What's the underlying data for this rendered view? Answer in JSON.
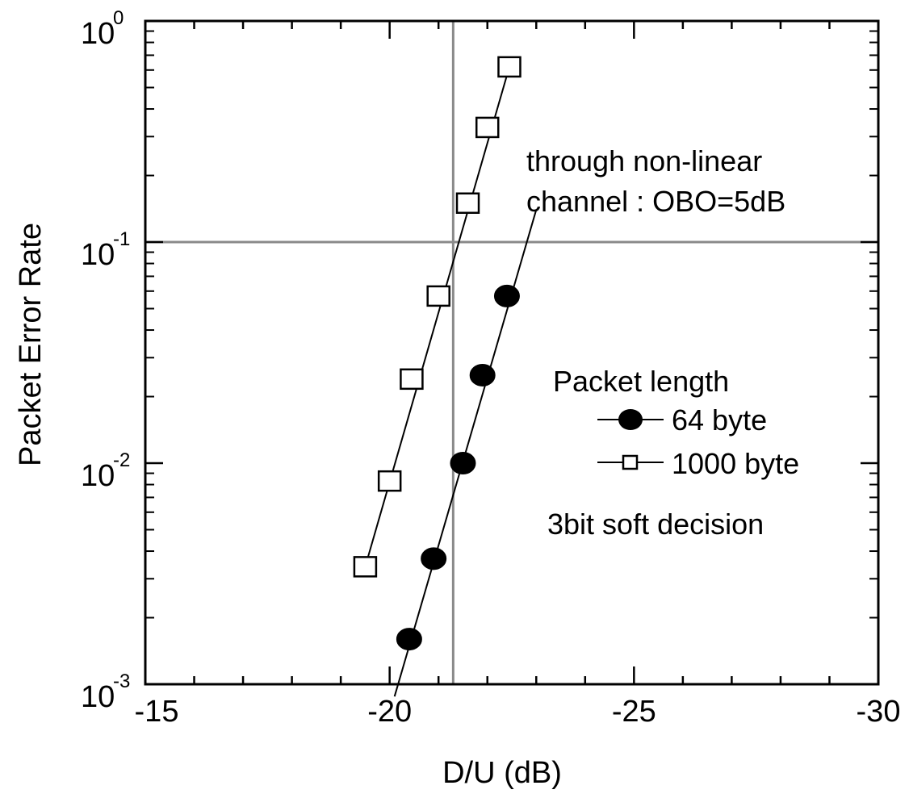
{
  "chart_data": {
    "type": "line",
    "title": "",
    "xlabel": "D/U (dB)",
    "ylabel": "Packet Error Rate",
    "x_axis": {
      "range": [
        -15,
        -30
      ],
      "reversed": true,
      "ticks": [
        {
          "value": -15,
          "label": "-15"
        },
        {
          "value": -20,
          "label": "-20"
        },
        {
          "value": -25,
          "label": "-25"
        },
        {
          "value": -30,
          "label": "-30"
        }
      ]
    },
    "y_axis": {
      "scale": "log",
      "range": [
        0.001,
        1
      ],
      "ticks": [
        {
          "value": 1,
          "base": "10",
          "exp": "0"
        },
        {
          "value": 0.1,
          "base": "10",
          "exp": "-1"
        },
        {
          "value": 0.01,
          "base": "10",
          "exp": "-2"
        },
        {
          "value": 0.001,
          "base": "10",
          "exp": "-3"
        }
      ]
    },
    "reference_lines": {
      "x": -21.3,
      "y": 0.1
    },
    "series": [
      {
        "name": "64 byte",
        "marker": "filled-circle",
        "color": "#000000",
        "points": [
          {
            "x": -20.4,
            "y": 0.0016
          },
          {
            "x": -20.9,
            "y": 0.0037
          },
          {
            "x": -21.5,
            "y": 0.01
          },
          {
            "x": -21.9,
            "y": 0.025
          },
          {
            "x": -22.4,
            "y": 0.057
          }
        ],
        "fit_line": [
          [
            -20.1,
            0.00088
          ],
          [
            -23.0,
            0.14
          ]
        ]
      },
      {
        "name": "1000 byte",
        "marker": "open-square",
        "color": "#000000",
        "points": [
          {
            "x": -19.5,
            "y": 0.0034
          },
          {
            "x": -20.0,
            "y": 0.0083
          },
          {
            "x": -20.45,
            "y": 0.024
          },
          {
            "x": -21.0,
            "y": 0.057
          },
          {
            "x": -21.6,
            "y": 0.15
          },
          {
            "x": -22.0,
            "y": 0.33
          },
          {
            "x": -22.45,
            "y": 0.62
          }
        ],
        "fit_line": [
          [
            -19.5,
            0.0034
          ],
          [
            -22.45,
            0.62
          ]
        ]
      }
    ],
    "legend": {
      "title": "Packet length",
      "entries": [
        "64 byte",
        "1000 byte"
      ],
      "placement": "right-middle"
    },
    "annotations": [
      {
        "id": "through",
        "text": "through non-linear"
      },
      {
        "id": "channel",
        "text": "channel : OBO=5dB"
      },
      {
        "id": "soft",
        "text": "3bit soft decision"
      }
    ],
    "grid": false
  }
}
